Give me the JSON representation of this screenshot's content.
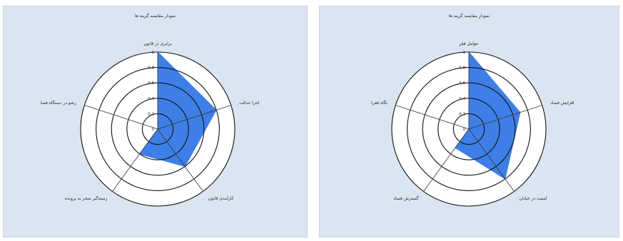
{
  "chart_data": [
    {
      "type": "radar",
      "title": "نمودار مقایسه گزینه ها",
      "axes": [
        "برابری در قانون",
        "اجرا عدالت",
        "کارآمدی قانون",
        "زمینه‌گیر منجر به پرونده",
        "رشو در دستگاه قضا"
      ],
      "values": [
        1.0,
        0.8,
        0.6,
        0.4,
        0.0
      ],
      "rmax": 1,
      "ticks": [
        "0",
        "0.2",
        "0.4",
        "0.6",
        "0.8",
        "1"
      ],
      "fill_color": "#3d7fe6",
      "grid": true
    },
    {
      "type": "radar",
      "title": "نمودار مقایسه گزینه ها",
      "axes": [
        "عوامل فقر",
        "افزایش فساد",
        "امنیت در خیابان",
        "گسترش فساد",
        "نگاه فقرا"
      ],
      "values": [
        1.0,
        0.7,
        0.8,
        0.3,
        0.0
      ],
      "rmax": 1,
      "ticks": [
        "0",
        "0.2",
        "0.4",
        "0.6",
        "0.8",
        "1"
      ],
      "fill_color": "#3d7fe6",
      "grid": true
    }
  ]
}
